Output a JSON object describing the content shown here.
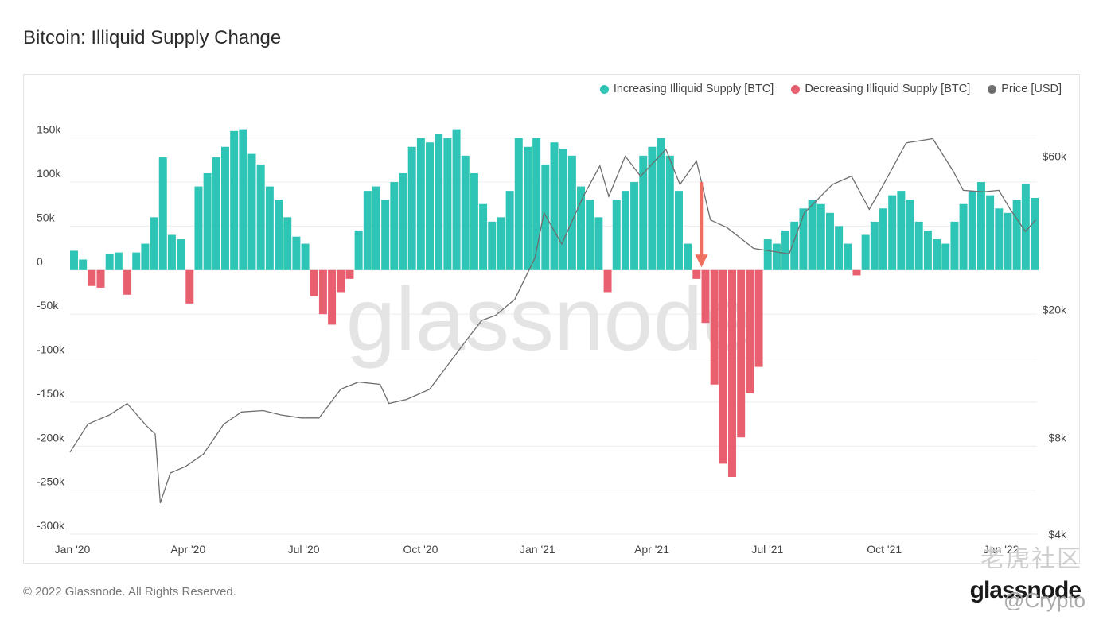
{
  "page": {
    "title": "Bitcoin: Illiquid Supply Change",
    "copyright": "© 2022 Glassnode. All Rights Reserved.",
    "brand": "glassnode",
    "watermark": "glassnode",
    "community_watermark": "老虎社区",
    "handle_watermark": "@Crypto"
  },
  "colors": {
    "increasing": "#2ec4b6",
    "decreasing": "#e8606f",
    "price": "#6e6e6e",
    "arrow": "#ef6f5e",
    "grid": "#ececec"
  },
  "chart_data": {
    "type": "bar",
    "title": "Bitcoin: Illiquid Supply Change",
    "legend_placement": "top-right",
    "grid": true,
    "legend": [
      {
        "label": "Increasing Illiquid Supply [BTC]",
        "color": "#2ec4b6"
      },
      {
        "label": "Decreasing Illiquid Supply [BTC]",
        "color": "#e8606f"
      },
      {
        "label": "Price [USD]",
        "color": "#6e6e6e"
      }
    ],
    "x_range": [
      "2020-01-01",
      "2022-01-31"
    ],
    "x_ticks": [
      {
        "date": "2020-01-01",
        "label": "Jan '20"
      },
      {
        "date": "2020-04-01",
        "label": "Apr '20"
      },
      {
        "date": "2020-07-01",
        "label": "Jul '20"
      },
      {
        "date": "2020-10-01",
        "label": "Oct '20"
      },
      {
        "date": "2021-01-01",
        "label": "Jan '21"
      },
      {
        "date": "2021-04-01",
        "label": "Apr '21"
      },
      {
        "date": "2021-07-01",
        "label": "Jul '21"
      },
      {
        "date": "2021-10-01",
        "label": "Oct '21"
      },
      {
        "date": "2022-01-01",
        "label": "Jan '22"
      }
    ],
    "y_left": {
      "range": [
        -300000,
        175000
      ],
      "ticks": [
        {
          "value": 150000,
          "label": "150k"
        },
        {
          "value": 100000,
          "label": "100k"
        },
        {
          "value": 50000,
          "label": "50k"
        },
        {
          "value": 0,
          "label": "0"
        },
        {
          "value": -50000,
          "label": "-50k"
        },
        {
          "value": -100000,
          "label": "-100k"
        },
        {
          "value": -150000,
          "label": "-150k"
        },
        {
          "value": -200000,
          "label": "-200k"
        },
        {
          "value": -250000,
          "label": "-250k"
        },
        {
          "value": -300000,
          "label": "-300k"
        }
      ]
    },
    "y_right": {
      "scale": "log",
      "range": [
        4000,
        80000
      ],
      "ticks": [
        {
          "value": 60000,
          "label": "$60k"
        },
        {
          "value": 20000,
          "label": "$20k"
        },
        {
          "value": 8000,
          "label": "$8k"
        },
        {
          "value": 4000,
          "label": "$4k"
        }
      ]
    },
    "illiquid_supply_change": [
      {
        "date": "2020-01-01",
        "value": 22000
      },
      {
        "date": "2020-01-08",
        "value": 12000
      },
      {
        "date": "2020-01-15",
        "value": -18000
      },
      {
        "date": "2020-01-22",
        "value": -20000
      },
      {
        "date": "2020-01-29",
        "value": 18000
      },
      {
        "date": "2020-02-05",
        "value": 20000
      },
      {
        "date": "2020-02-12",
        "value": -28000
      },
      {
        "date": "2020-02-19",
        "value": 20000
      },
      {
        "date": "2020-02-26",
        "value": 30000
      },
      {
        "date": "2020-03-04",
        "value": 60000
      },
      {
        "date": "2020-03-11",
        "value": 128000
      },
      {
        "date": "2020-03-18",
        "value": 40000
      },
      {
        "date": "2020-03-25",
        "value": 35000
      },
      {
        "date": "2020-04-01",
        "value": -38000
      },
      {
        "date": "2020-04-08",
        "value": 95000
      },
      {
        "date": "2020-04-15",
        "value": 110000
      },
      {
        "date": "2020-04-22",
        "value": 128000
      },
      {
        "date": "2020-04-29",
        "value": 140000
      },
      {
        "date": "2020-05-06",
        "value": 158000
      },
      {
        "date": "2020-05-13",
        "value": 160000
      },
      {
        "date": "2020-05-20",
        "value": 132000
      },
      {
        "date": "2020-05-27",
        "value": 120000
      },
      {
        "date": "2020-06-03",
        "value": 95000
      },
      {
        "date": "2020-06-10",
        "value": 80000
      },
      {
        "date": "2020-06-17",
        "value": 60000
      },
      {
        "date": "2020-06-24",
        "value": 38000
      },
      {
        "date": "2020-07-01",
        "value": 30000
      },
      {
        "date": "2020-07-08",
        "value": -30000
      },
      {
        "date": "2020-07-15",
        "value": -50000
      },
      {
        "date": "2020-07-22",
        "value": -62000
      },
      {
        "date": "2020-07-29",
        "value": -25000
      },
      {
        "date": "2020-08-05",
        "value": -10000
      },
      {
        "date": "2020-08-12",
        "value": 45000
      },
      {
        "date": "2020-08-19",
        "value": 90000
      },
      {
        "date": "2020-08-26",
        "value": 95000
      },
      {
        "date": "2020-09-02",
        "value": 80000
      },
      {
        "date": "2020-09-09",
        "value": 100000
      },
      {
        "date": "2020-09-16",
        "value": 110000
      },
      {
        "date": "2020-09-23",
        "value": 140000
      },
      {
        "date": "2020-09-30",
        "value": 150000
      },
      {
        "date": "2020-10-07",
        "value": 145000
      },
      {
        "date": "2020-10-14",
        "value": 155000
      },
      {
        "date": "2020-10-21",
        "value": 150000
      },
      {
        "date": "2020-10-28",
        "value": 160000
      },
      {
        "date": "2020-11-04",
        "value": 130000
      },
      {
        "date": "2020-11-11",
        "value": 110000
      },
      {
        "date": "2020-11-18",
        "value": 75000
      },
      {
        "date": "2020-11-25",
        "value": 55000
      },
      {
        "date": "2020-12-02",
        "value": 60000
      },
      {
        "date": "2020-12-09",
        "value": 90000
      },
      {
        "date": "2020-12-16",
        "value": 150000
      },
      {
        "date": "2020-12-23",
        "value": 140000
      },
      {
        "date": "2020-12-30",
        "value": 150000
      },
      {
        "date": "2021-01-06",
        "value": 120000
      },
      {
        "date": "2021-01-13",
        "value": 145000
      },
      {
        "date": "2021-01-20",
        "value": 138000
      },
      {
        "date": "2021-01-27",
        "value": 130000
      },
      {
        "date": "2021-02-03",
        "value": 95000
      },
      {
        "date": "2021-02-10",
        "value": 80000
      },
      {
        "date": "2021-02-17",
        "value": 60000
      },
      {
        "date": "2021-02-24",
        "value": -25000
      },
      {
        "date": "2021-03-03",
        "value": 80000
      },
      {
        "date": "2021-03-10",
        "value": 90000
      },
      {
        "date": "2021-03-17",
        "value": 100000
      },
      {
        "date": "2021-03-24",
        "value": 130000
      },
      {
        "date": "2021-03-31",
        "value": 140000
      },
      {
        "date": "2021-04-07",
        "value": 150000
      },
      {
        "date": "2021-04-14",
        "value": 130000
      },
      {
        "date": "2021-04-21",
        "value": 90000
      },
      {
        "date": "2021-04-28",
        "value": 30000
      },
      {
        "date": "2021-05-05",
        "value": -10000
      },
      {
        "date": "2021-05-12",
        "value": -60000
      },
      {
        "date": "2021-05-19",
        "value": -130000
      },
      {
        "date": "2021-05-26",
        "value": -220000
      },
      {
        "date": "2021-06-02",
        "value": -235000
      },
      {
        "date": "2021-06-09",
        "value": -190000
      },
      {
        "date": "2021-06-16",
        "value": -140000
      },
      {
        "date": "2021-06-23",
        "value": -110000
      },
      {
        "date": "2021-06-30",
        "value": 35000
      },
      {
        "date": "2021-07-07",
        "value": 30000
      },
      {
        "date": "2021-07-14",
        "value": 45000
      },
      {
        "date": "2021-07-21",
        "value": 55000
      },
      {
        "date": "2021-07-28",
        "value": 70000
      },
      {
        "date": "2021-08-04",
        "value": 80000
      },
      {
        "date": "2021-08-11",
        "value": 75000
      },
      {
        "date": "2021-08-18",
        "value": 65000
      },
      {
        "date": "2021-08-25",
        "value": 50000
      },
      {
        "date": "2021-09-01",
        "value": 30000
      },
      {
        "date": "2021-09-08",
        "value": -6000
      },
      {
        "date": "2021-09-15",
        "value": 40000
      },
      {
        "date": "2021-09-22",
        "value": 55000
      },
      {
        "date": "2021-09-29",
        "value": 70000
      },
      {
        "date": "2021-10-06",
        "value": 85000
      },
      {
        "date": "2021-10-13",
        "value": 90000
      },
      {
        "date": "2021-10-20",
        "value": 80000
      },
      {
        "date": "2021-10-27",
        "value": 55000
      },
      {
        "date": "2021-11-03",
        "value": 45000
      },
      {
        "date": "2021-11-10",
        "value": 35000
      },
      {
        "date": "2021-11-17",
        "value": 30000
      },
      {
        "date": "2021-11-24",
        "value": 55000
      },
      {
        "date": "2021-12-01",
        "value": 75000
      },
      {
        "date": "2021-12-08",
        "value": 90000
      },
      {
        "date": "2021-12-15",
        "value": 100000
      },
      {
        "date": "2021-12-22",
        "value": 85000
      },
      {
        "date": "2021-12-29",
        "value": 70000
      },
      {
        "date": "2022-01-05",
        "value": 65000
      },
      {
        "date": "2022-01-12",
        "value": 80000
      },
      {
        "date": "2022-01-19",
        "value": 98000
      },
      {
        "date": "2022-01-26",
        "value": 82000
      }
    ],
    "price_usd": [
      {
        "date": "2020-01-01",
        "value": 7200
      },
      {
        "date": "2020-01-15",
        "value": 8800
      },
      {
        "date": "2020-02-01",
        "value": 9400
      },
      {
        "date": "2020-02-15",
        "value": 10200
      },
      {
        "date": "2020-03-01",
        "value": 8700
      },
      {
        "date": "2020-03-08",
        "value": 8200
      },
      {
        "date": "2020-03-12",
        "value": 5000
      },
      {
        "date": "2020-03-20",
        "value": 6200
      },
      {
        "date": "2020-04-01",
        "value": 6500
      },
      {
        "date": "2020-04-15",
        "value": 7100
      },
      {
        "date": "2020-05-01",
        "value": 8800
      },
      {
        "date": "2020-05-15",
        "value": 9600
      },
      {
        "date": "2020-06-01",
        "value": 9700
      },
      {
        "date": "2020-06-15",
        "value": 9400
      },
      {
        "date": "2020-07-01",
        "value": 9200
      },
      {
        "date": "2020-07-15",
        "value": 9200
      },
      {
        "date": "2020-08-01",
        "value": 11300
      },
      {
        "date": "2020-08-15",
        "value": 11900
      },
      {
        "date": "2020-09-01",
        "value": 11700
      },
      {
        "date": "2020-09-08",
        "value": 10200
      },
      {
        "date": "2020-09-22",
        "value": 10500
      },
      {
        "date": "2020-10-10",
        "value": 11300
      },
      {
        "date": "2020-10-21",
        "value": 12900
      },
      {
        "date": "2020-11-05",
        "value": 15500
      },
      {
        "date": "2020-11-20",
        "value": 18500
      },
      {
        "date": "2020-12-01",
        "value": 19200
      },
      {
        "date": "2020-12-16",
        "value": 21500
      },
      {
        "date": "2021-01-01",
        "value": 29000
      },
      {
        "date": "2021-01-08",
        "value": 40000
      },
      {
        "date": "2021-01-22",
        "value": 32000
      },
      {
        "date": "2021-02-08",
        "value": 45000
      },
      {
        "date": "2021-02-21",
        "value": 56000
      },
      {
        "date": "2021-02-28",
        "value": 45000
      },
      {
        "date": "2021-03-13",
        "value": 60000
      },
      {
        "date": "2021-03-25",
        "value": 52000
      },
      {
        "date": "2021-04-14",
        "value": 63000
      },
      {
        "date": "2021-04-25",
        "value": 49000
      },
      {
        "date": "2021-05-08",
        "value": 58000
      },
      {
        "date": "2021-05-13",
        "value": 48000
      },
      {
        "date": "2021-05-19",
        "value": 38000
      },
      {
        "date": "2021-06-01",
        "value": 36000
      },
      {
        "date": "2021-06-22",
        "value": 31000
      },
      {
        "date": "2021-07-20",
        "value": 29800
      },
      {
        "date": "2021-08-01",
        "value": 40000
      },
      {
        "date": "2021-08-23",
        "value": 49000
      },
      {
        "date": "2021-09-07",
        "value": 52000
      },
      {
        "date": "2021-09-21",
        "value": 41000
      },
      {
        "date": "2021-10-01",
        "value": 48000
      },
      {
        "date": "2021-10-20",
        "value": 66000
      },
      {
        "date": "2021-11-10",
        "value": 68000
      },
      {
        "date": "2021-11-26",
        "value": 54000
      },
      {
        "date": "2021-12-04",
        "value": 47000
      },
      {
        "date": "2021-12-20",
        "value": 46500
      },
      {
        "date": "2022-01-01",
        "value": 47000
      },
      {
        "date": "2022-01-10",
        "value": 41000
      },
      {
        "date": "2022-01-22",
        "value": 35000
      },
      {
        "date": "2022-01-30",
        "value": 38000
      }
    ],
    "annotation": {
      "type": "arrow",
      "date": "2021-05-12",
      "from_value": 100000,
      "to_value": 5000
    }
  }
}
